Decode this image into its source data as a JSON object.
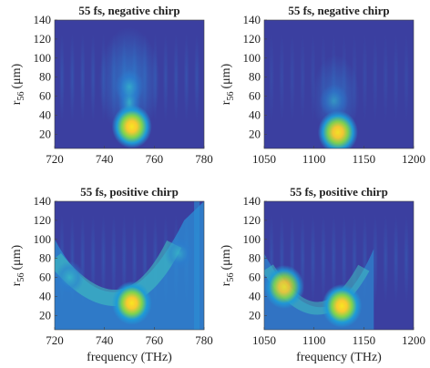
{
  "chart_data": [
    {
      "type": "heatmap",
      "title": "55 fs, negative chirp",
      "xlabel": "",
      "ylabel": "r",
      "ylabel_sub": "56",
      "ylabel_unit": "(μm)",
      "xlim": [
        720,
        780
      ],
      "ylim": [
        5,
        140
      ],
      "xticks": [
        720,
        740,
        760,
        780
      ],
      "yticks": [
        20,
        40,
        60,
        80,
        100,
        120,
        140
      ],
      "hotspots": [
        {
          "x": 751,
          "y": 28,
          "intensity": 1.0
        },
        {
          "x": 750,
          "y": 70,
          "intensity": 0.45
        }
      ]
    },
    {
      "type": "heatmap",
      "title": "55 fs, negative chirp",
      "xlabel": "",
      "ylabel": "r",
      "ylabel_sub": "56",
      "ylabel_unit": "(μm)",
      "xlim": [
        1050,
        1200
      ],
      "ylim": [
        5,
        140
      ],
      "xticks": [
        1050,
        1100,
        1150,
        1200
      ],
      "yticks": [
        20,
        40,
        60,
        80,
        100,
        120,
        140
      ],
      "hotspots": [
        {
          "x": 1124,
          "y": 22,
          "intensity": 0.95
        },
        {
          "x": 1120,
          "y": 55,
          "intensity": 0.3
        }
      ]
    },
    {
      "type": "heatmap",
      "title": "55 fs, positive chirp",
      "xlabel": "frequency (THz)",
      "ylabel": "r",
      "ylabel_sub": "56",
      "ylabel_unit": "(μm)",
      "xlim": [
        720,
        780
      ],
      "ylim": [
        5,
        140
      ],
      "xticks": [
        720,
        740,
        760,
        780
      ],
      "yticks": [
        20,
        40,
        60,
        80,
        100,
        120,
        140
      ],
      "hotspots": [
        {
          "x": 751,
          "y": 33,
          "intensity": 1.0
        },
        {
          "x": 726,
          "y": 60,
          "intensity": 0.6
        },
        {
          "x": 770,
          "y": 85,
          "intensity": 0.45
        }
      ]
    },
    {
      "type": "heatmap",
      "title": "55 fs, positive chirp",
      "xlabel": "frequency (THz)",
      "ylabel": "r",
      "ylabel_sub": "56",
      "ylabel_unit": "(μm)",
      "xlim": [
        1050,
        1200
      ],
      "ylim": [
        5,
        140
      ],
      "xticks": [
        1050,
        1100,
        1150,
        1200
      ],
      "yticks": [
        20,
        40,
        60,
        80,
        100,
        120,
        140
      ],
      "hotspots": [
        {
          "x": 1128,
          "y": 30,
          "intensity": 1.0
        },
        {
          "x": 1070,
          "y": 50,
          "intensity": 0.8
        }
      ]
    }
  ],
  "colors": {
    "background": "#3b3fa0",
    "mid": "#1e9bd8",
    "high": "#7fd34e",
    "peak": "#f9c930",
    "max": "#f8e621"
  }
}
